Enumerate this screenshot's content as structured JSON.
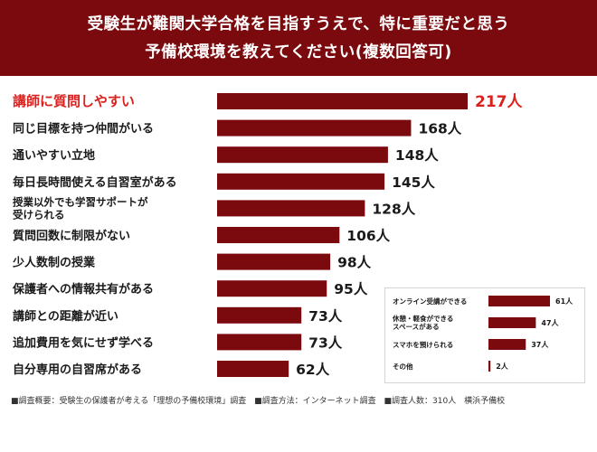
{
  "header": {
    "title_line1": "受験生が難関大学合格を目指すうえで、特に重要だと思う",
    "title_line2": "予備校環境を教えてください(複数回答可)"
  },
  "chart_data": [
    {
      "type": "bar",
      "orientation": "horizontal",
      "unit_suffix": "人",
      "categories": [
        "講師に質問しやすい",
        "同じ目標を持つ仲間がいる",
        "通いやすい立地",
        "毎日長時間使える自習室がある",
        "授業以外でも学習サポートが\n受けられる",
        "質問回数に制限がない",
        "少人数制の授業",
        "保護者への情報共有がある",
        "講師との距離が近い",
        "追加費用を気にせず学べる",
        "自分専用の自習席がある"
      ],
      "values": [
        217,
        168,
        148,
        145,
        128,
        106,
        98,
        95,
        73,
        73,
        62
      ],
      "value_labels": [
        "217人",
        "168人",
        "148人",
        "145人",
        "128人",
        "106人",
        "98人",
        "95人",
        "73人",
        "73人",
        "62人"
      ],
      "highlight_index": 0,
      "bar_color": "#7b0a0e",
      "highlight_text_color": "#d9221f",
      "grid": false,
      "legend": "none"
    },
    {
      "type": "bar",
      "orientation": "horizontal",
      "unit_suffix": "人",
      "categories": [
        "オンライン受講ができる",
        "休憩・軽食ができる\nスペースがある",
        "スマホを預けられる",
        "その他"
      ],
      "values": [
        61,
        47,
        37,
        2
      ],
      "value_labels": [
        "61人",
        "47人",
        "37人",
        "2人"
      ],
      "bar_color": "#7b0a0e",
      "grid": false,
      "legend": "none"
    }
  ],
  "footer": {
    "survey_overview": "■調査概要：受験生の保護者が考える「理想の予備校環境」調査",
    "survey_method": "■調査方法：インターネット調査",
    "survey_count": "■調査人数：310人",
    "organization": "横浜予備校"
  },
  "colors": {
    "header_bg": "#7b0a0e",
    "bar": "#7b0a0e",
    "highlight_text": "#d9221f"
  }
}
